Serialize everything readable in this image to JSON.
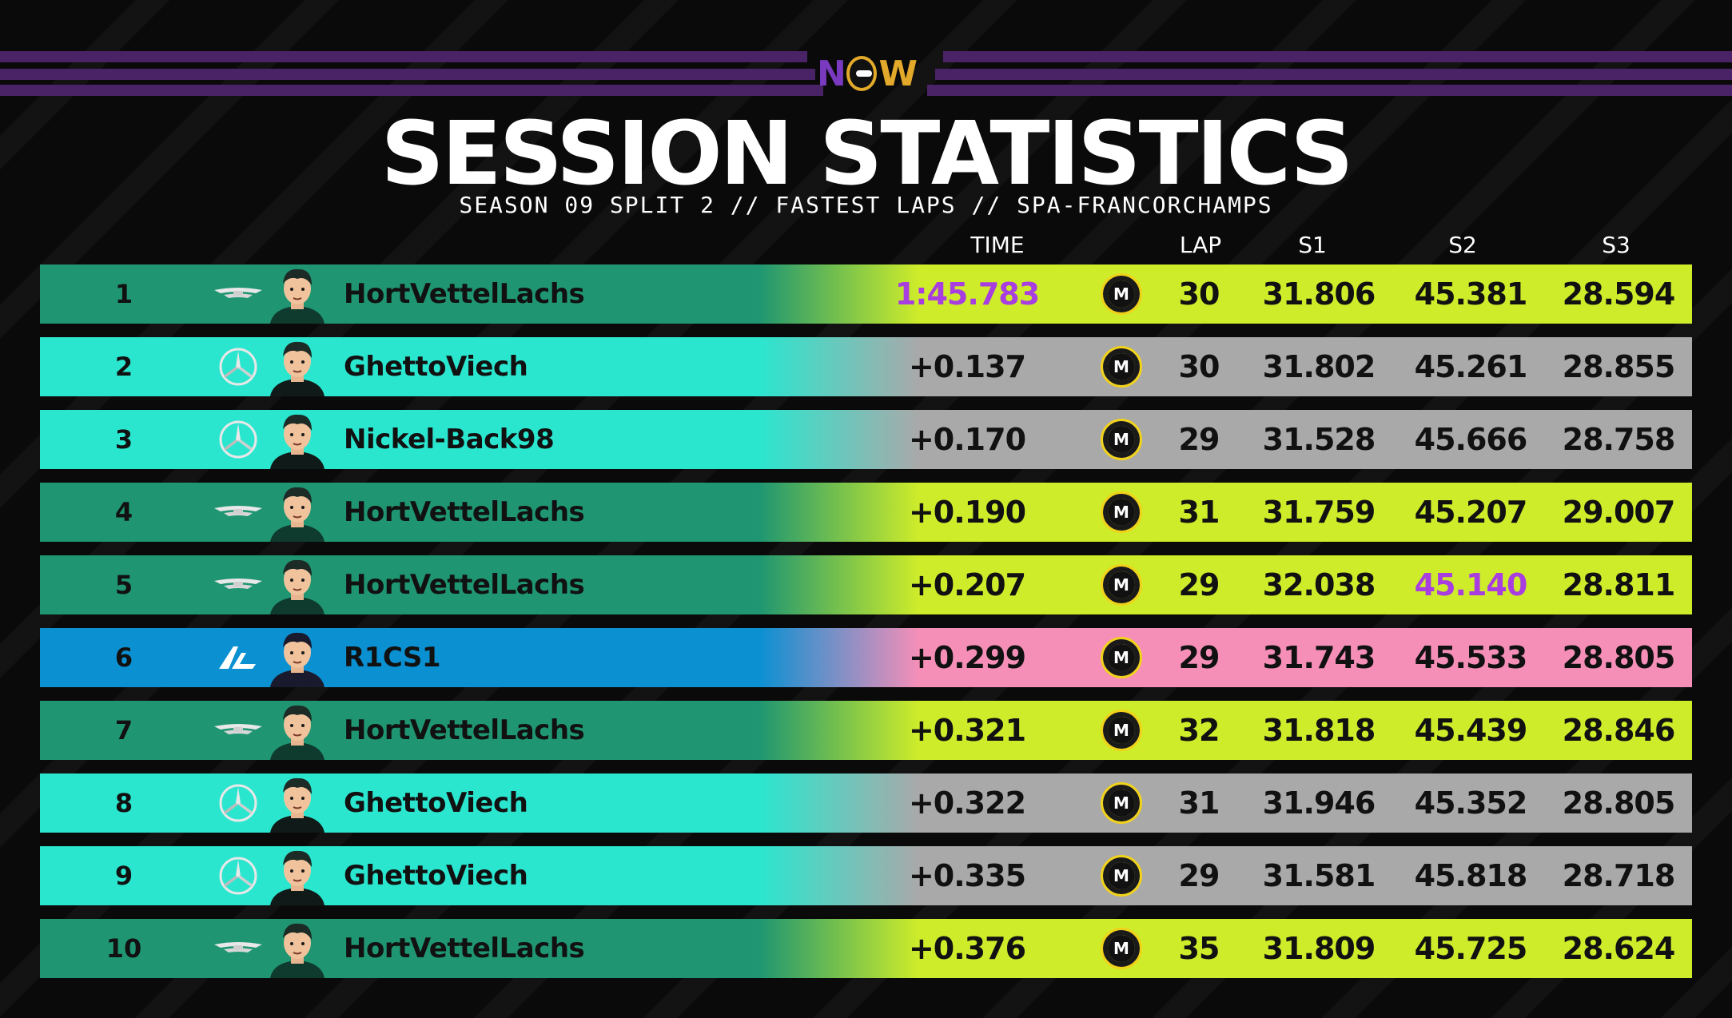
{
  "brand": {
    "logo_text_1": "N",
    "logo_text_2": "W"
  },
  "header": {
    "title": "SESSION STATISTICS",
    "subtitle": "SEASON 09 SPLIT 2 // FASTEST LAPS // SPA-FRANCORCHAMPS"
  },
  "columns": {
    "time": "TIME",
    "lap": "LAP",
    "s1": "S1",
    "s2": "S2",
    "s3": "S3"
  },
  "colors": {
    "aston_left": "#1f9671",
    "aston_right": "#ceec2a",
    "merc_left": "#2be6cf",
    "merc_right": "#a9a9a9",
    "alpine_left": "#0b90d2",
    "alpine_right": "#f58fb8",
    "fastest": "#a83de0",
    "medium_tyre": "#f1d21a"
  },
  "tyre_label": "M",
  "rows": [
    {
      "pos": "1",
      "team": "aston-martin",
      "name": "HortVettelLachs",
      "time": "1:45.783",
      "time_fastest": true,
      "lap": "30",
      "s1": "31.806",
      "s2": "45.381",
      "s3": "28.594",
      "s2_fastest": false
    },
    {
      "pos": "2",
      "team": "mercedes",
      "name": "GhettoViech",
      "time": "+0.137",
      "time_fastest": false,
      "lap": "30",
      "s1": "31.802",
      "s2": "45.261",
      "s3": "28.855",
      "s2_fastest": false
    },
    {
      "pos": "3",
      "team": "mercedes",
      "name": "Nickel-Back98",
      "time": "+0.170",
      "time_fastest": false,
      "lap": "29",
      "s1": "31.528",
      "s2": "45.666",
      "s3": "28.758",
      "s2_fastest": false
    },
    {
      "pos": "4",
      "team": "aston-martin",
      "name": "HortVettelLachs",
      "time": "+0.190",
      "time_fastest": false,
      "lap": "31",
      "s1": "31.759",
      "s2": "45.207",
      "s3": "29.007",
      "s2_fastest": false
    },
    {
      "pos": "5",
      "team": "aston-martin",
      "name": "HortVettelLachs",
      "time": "+0.207",
      "time_fastest": false,
      "lap": "29",
      "s1": "32.038",
      "s2": "45.140",
      "s3": "28.811",
      "s2_fastest": true
    },
    {
      "pos": "6",
      "team": "alpine",
      "name": "R1CS1",
      "time": "+0.299",
      "time_fastest": false,
      "lap": "29",
      "s1": "31.743",
      "s2": "45.533",
      "s3": "28.805",
      "s2_fastest": false
    },
    {
      "pos": "7",
      "team": "aston-martin",
      "name": "HortVettelLachs",
      "time": "+0.321",
      "time_fastest": false,
      "lap": "32",
      "s1": "31.818",
      "s2": "45.439",
      "s3": "28.846",
      "s2_fastest": false
    },
    {
      "pos": "8",
      "team": "mercedes",
      "name": "GhettoViech",
      "time": "+0.322",
      "time_fastest": false,
      "lap": "31",
      "s1": "31.946",
      "s2": "45.352",
      "s3": "28.805",
      "s2_fastest": false
    },
    {
      "pos": "9",
      "team": "mercedes",
      "name": "GhettoViech",
      "time": "+0.335",
      "time_fastest": false,
      "lap": "29",
      "s1": "31.581",
      "s2": "45.818",
      "s3": "28.718",
      "s2_fastest": false
    },
    {
      "pos": "10",
      "team": "aston-martin",
      "name": "HortVettelLachs",
      "time": "+0.376",
      "time_fastest": false,
      "lap": "35",
      "s1": "31.809",
      "s2": "45.725",
      "s3": "28.624",
      "s2_fastest": false
    }
  ]
}
